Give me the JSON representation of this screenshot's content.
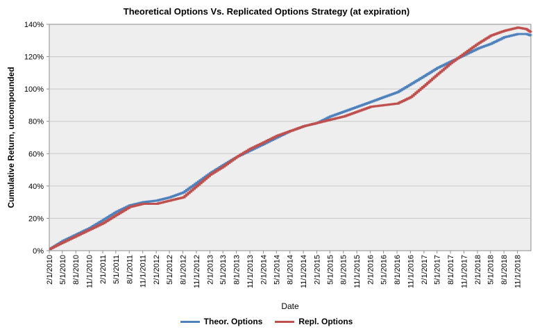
{
  "chart_data": {
    "type": "line",
    "title": "Theoretical Options Vs. Replicated Options  Strategy (at expiration)",
    "xlabel": "Date",
    "ylabel": "Cumulative Return, uncompounded",
    "ylim": [
      0,
      140
    ],
    "y_ticks": [
      "0%",
      "20%",
      "40%",
      "60%",
      "80%",
      "100%",
      "120%",
      "140%"
    ],
    "x_ticks": [
      "2/1/2010",
      "5/1/2010",
      "8/1/2010",
      "11/1/2010",
      "2/1/2011",
      "5/1/2011",
      "8/1/2011",
      "11/1/2011",
      "2/1/2012",
      "5/1/2012",
      "8/1/2012",
      "11/1/2012",
      "2/1/2013",
      "5/1/2013",
      "8/1/2013",
      "11/1/2013",
      "2/1/2014",
      "5/1/2014",
      "8/1/2014",
      "11/1/2014",
      "2/1/2015",
      "5/1/2015",
      "8/1/2015",
      "11/1/2015",
      "2/1/2016",
      "5/1/2016",
      "8/1/2016",
      "11/1/2016",
      "2/1/2017",
      "5/1/2017",
      "8/1/2017",
      "11/1/2017",
      "2/1/2018",
      "5/1/2018",
      "8/1/2018",
      "11/1/2018"
    ],
    "x_range": [
      "2/1/2010",
      "2/1/2019"
    ],
    "grid": true,
    "legend_position": "bottom",
    "series": [
      {
        "name": "Theor. Options",
        "color": "#4F81BD",
        "x": [
          "2/1/2010",
          "5/1/2010",
          "8/1/2010",
          "11/1/2010",
          "2/1/2011",
          "5/1/2011",
          "8/1/2011",
          "11/1/2011",
          "2/1/2012",
          "5/1/2012",
          "8/1/2012",
          "11/1/2012",
          "2/1/2013",
          "5/1/2013",
          "8/1/2013",
          "11/1/2013",
          "2/1/2014",
          "5/1/2014",
          "8/1/2014",
          "11/1/2014",
          "2/1/2015",
          "5/1/2015",
          "8/1/2015",
          "11/1/2015",
          "2/1/2016",
          "5/1/2016",
          "8/1/2016",
          "11/1/2016",
          "2/1/2017",
          "5/1/2017",
          "8/1/2017",
          "11/1/2017",
          "2/1/2018",
          "5/1/2018",
          "8/1/2018",
          "11/1/2018",
          "1/1/2019",
          "2/1/2019"
        ],
        "values": [
          1,
          6,
          10,
          14,
          19,
          24,
          28,
          30,
          31,
          33,
          36,
          42,
          48,
          53,
          58,
          62,
          66,
          70,
          74,
          77,
          79,
          83,
          86,
          89,
          92,
          95,
          98,
          103,
          108,
          113,
          117,
          121,
          125,
          128,
          132,
          134,
          134,
          133
        ]
      },
      {
        "name": "Repl. Options",
        "color": "#C0504D",
        "x": [
          "2/1/2010",
          "5/1/2010",
          "8/1/2010",
          "11/1/2010",
          "2/1/2011",
          "5/1/2011",
          "8/1/2011",
          "11/1/2011",
          "2/1/2012",
          "5/1/2012",
          "8/1/2012",
          "11/1/2012",
          "2/1/2013",
          "5/1/2013",
          "8/1/2013",
          "11/1/2013",
          "2/1/2014",
          "5/1/2014",
          "8/1/2014",
          "11/1/2014",
          "2/1/2015",
          "5/1/2015",
          "8/1/2015",
          "11/1/2015",
          "2/1/2016",
          "5/1/2016",
          "8/1/2016",
          "11/1/2016",
          "2/1/2017",
          "5/1/2017",
          "8/1/2017",
          "11/1/2017",
          "2/1/2018",
          "5/1/2018",
          "8/1/2018",
          "11/1/2018",
          "1/1/2019",
          "2/1/2019"
        ],
        "values": [
          1,
          5,
          9,
          13,
          17,
          22,
          27,
          29,
          29,
          31,
          33,
          40,
          47,
          52,
          58,
          63,
          67,
          71,
          74,
          77,
          79,
          81,
          83,
          86,
          89,
          90,
          91,
          95,
          102,
          109,
          116,
          122,
          128,
          133,
          136,
          138,
          137,
          135
        ]
      }
    ]
  }
}
